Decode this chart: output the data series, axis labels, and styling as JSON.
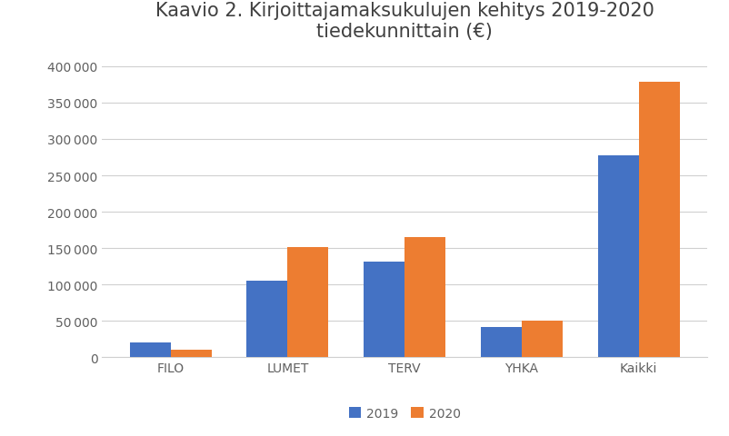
{
  "title": "Kaavio 2. Kirjoittajamaksukulujen kehitys 2019-2020\ntiedekunnittain (€)",
  "categories": [
    "FILO",
    "LUMET",
    "TERV",
    "YHKA",
    "Kaikki"
  ],
  "values_2019": [
    20000,
    105000,
    132000,
    42000,
    278000
  ],
  "values_2020": [
    11000,
    152000,
    165000,
    50000,
    378000
  ],
  "color_2019": "#4472C4",
  "color_2020": "#ED7D31",
  "legend_labels": [
    "2019",
    "2020"
  ],
  "ylim": [
    0,
    420000
  ],
  "yticks": [
    0,
    50000,
    100000,
    150000,
    200000,
    250000,
    300000,
    350000,
    400000
  ],
  "background_color": "#ffffff",
  "plot_bg_color": "#ffffff",
  "title_fontsize": 15,
  "tick_fontsize": 10,
  "legend_fontsize": 10,
  "bar_width": 0.35,
  "grid_color": "#d0d0d0",
  "title_color": "#404040",
  "tick_label_color": "#606060"
}
